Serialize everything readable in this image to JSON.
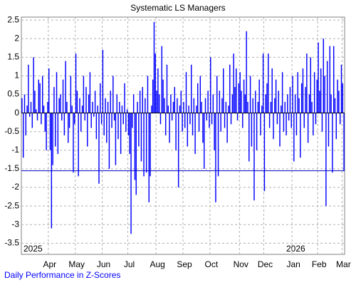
{
  "chart_data": {
    "type": "bar",
    "title": "Systematic LS Managers",
    "subtitle": "Daily Performance in Z-Scores",
    "year_labels": [
      "2025",
      "2026"
    ],
    "color": "#0000ff",
    "reference_line": -1.55,
    "reference_color": "#0000c0",
    "grid": true,
    "ylim": [
      -3.8,
      2.58
    ],
    "yticks": [
      2.5,
      2,
      1.5,
      1,
      0.5,
      0,
      -0.5,
      -1,
      -1.5,
      -2,
      -2.5,
      -3,
      -3.5
    ],
    "categories": [
      null,
      null,
      null,
      null,
      null,
      null,
      null,
      null,
      null,
      null,
      null,
      null,
      null,
      null,
      null,
      null,
      null,
      null,
      null,
      null,
      null,
      "Apr",
      null,
      null,
      null,
      null,
      null,
      null,
      null,
      null,
      null,
      null,
      null,
      null,
      null,
      null,
      null,
      null,
      null,
      null,
      null,
      null,
      "May",
      null,
      null,
      null,
      null,
      null,
      null,
      null,
      null,
      null,
      null,
      null,
      null,
      null,
      null,
      null,
      null,
      null,
      null,
      null,
      null,
      "Jun",
      null,
      null,
      null,
      null,
      null,
      null,
      null,
      null,
      null,
      null,
      null,
      null,
      null,
      null,
      null,
      null,
      null,
      null,
      null,
      "Jul",
      null,
      null,
      null,
      null,
      null,
      null,
      null,
      null,
      null,
      null,
      null,
      null,
      null,
      null,
      null,
      null,
      null,
      null,
      null,
      null,
      null,
      "Aug",
      null,
      null,
      null,
      null,
      null,
      null,
      null,
      null,
      null,
      null,
      null,
      null,
      null,
      null,
      null,
      null,
      null,
      null,
      null,
      null,
      "Sep",
      null,
      null,
      null,
      null,
      null,
      null,
      null,
      null,
      null,
      null,
      null,
      null,
      null,
      null,
      null,
      null,
      null,
      null,
      null,
      null,
      "Oct",
      null,
      null,
      null,
      null,
      null,
      null,
      null,
      null,
      null,
      null,
      null,
      null,
      null,
      null,
      null,
      null,
      null,
      null,
      null,
      null,
      null,
      null,
      "Nov",
      null,
      null,
      null,
      null,
      null,
      null,
      null,
      null,
      null,
      null,
      null,
      null,
      null,
      null,
      null,
      null,
      null,
      null,
      "Dec",
      null,
      null,
      null,
      null,
      null,
      null,
      null,
      null,
      null,
      null,
      null,
      null,
      null,
      null,
      null,
      null,
      null,
      null,
      null,
      null,
      null,
      "Jan",
      null,
      null,
      null,
      null,
      null,
      null,
      null,
      null,
      null,
      null,
      null,
      null,
      null,
      null,
      null,
      null,
      null,
      null,
      null,
      "Feb",
      null,
      null,
      null,
      null,
      null,
      null,
      null,
      null,
      null,
      null,
      null,
      null,
      null,
      null,
      null,
      null,
      null,
      null,
      "Mar",
      null
    ],
    "values": [
      0.4,
      -1.2,
      0.5,
      -0.6,
      0.2,
      1.3,
      -0.1,
      0.3,
      -0.4,
      1.5,
      0.6,
      0.1,
      -0.2,
      0.9,
      0.8,
      -0.3,
      1.0,
      0.2,
      -0.5,
      -1.0,
      0.3,
      1.2,
      -1.0,
      -3.1,
      -1.4,
      0.7,
      -0.9,
      1.1,
      -1.1,
      0.4,
      0.5,
      -0.2,
      0.9,
      -0.6,
      1.4,
      0.3,
      -0.8,
      -0.4,
      1.0,
      0.2,
      -1.6,
      -0.3,
      1.6,
      0.6,
      -1.7,
      0.4,
      -0.5,
      0.2,
      1.0,
      -0.2,
      0.7,
      -0.9,
      0.5,
      1.1,
      -0.4,
      0.3,
      -0.1,
      0.6,
      -0.7,
      0.2,
      -1.9,
      0.8,
      -0.3,
      1.7,
      -0.6,
      0.4,
      -0.8,
      0.3,
      -1.5,
      0.6,
      -0.4,
      1.0,
      -0.2,
      -1.4,
      0.5,
      -0.7,
      0.3,
      -1.1,
      0.2,
      -0.3,
      0.8,
      -0.5,
      0.1,
      -0.6,
      -1.1,
      -3.25,
      -0.4,
      0.5,
      -1.8,
      -2.2,
      0.3,
      -0.9,
      0.6,
      -1.3,
      0.7,
      -1.7,
      0.4,
      -1.6,
      1.0,
      -2.4,
      -1.7,
      0.2,
      0.9,
      2.45,
      1.6,
      0.6,
      1.2,
      0.5,
      -0.3,
      1.8,
      0.9,
      0.4,
      -0.6,
      1.3,
      0.2,
      -0.8,
      0.5,
      -0.2,
      0.3,
      0.7,
      -1.0,
      0.4,
      -2.0,
      0.2,
      0.6,
      -0.5,
      0.3,
      -0.4,
      1.1,
      -0.9,
      0.2,
      -0.3,
      1.3,
      -0.6,
      0.4,
      -1.1,
      0.2,
      0.8,
      -0.5,
      1.0,
      0.3,
      -0.8,
      -1.5,
      0.4,
      -0.2,
      0.6,
      -0.4,
      1.5,
      -0.3,
      0.5,
      -1.0,
      -2.4,
      1.0,
      -1.7,
      0.6,
      -0.5,
      0.4,
      1.2,
      -0.4,
      0.3,
      -0.8,
      0.2,
      1.3,
      -0.3,
      0.5,
      1.6,
      0.7,
      1.2,
      -0.2,
      0.8,
      1.1,
      0.6,
      -0.4,
      0.9,
      0.5,
      2.2,
      0.3,
      -1.3,
      1.0,
      -0.9,
      0.4,
      -2.35,
      0.6,
      -1.0,
      0.3,
      0.9,
      -0.6,
      0.2,
      1.6,
      -2.1,
      0.5,
      0.8,
      1.6,
      -0.4,
      0.3,
      1.2,
      -0.7,
      0.4,
      0.9,
      -0.3,
      0.6,
      -0.9,
      0.2,
      1.1,
      -0.5,
      0.3,
      -0.6,
      0.5,
      -0.2,
      0.7,
      -0.4,
      1.0,
      -1.3,
      0.5,
      -0.6,
      1.1,
      0.4,
      -1.2,
      0.8,
      1.2,
      -0.4,
      0.7,
      1.6,
      -0.8,
      0.5,
      1.5,
      0.3,
      -0.6,
      1.1,
      -0.3,
      0.9,
      1.9,
      0.6,
      1.2,
      -0.5,
      2.0,
      1.0,
      -2.5,
      1.4,
      -0.9,
      1.8,
      0.5,
      -1.6,
      1.8,
      0.4,
      -0.7,
      0.9,
      0.6,
      -0.3,
      1.3,
      0.8,
      -1.55
    ]
  }
}
